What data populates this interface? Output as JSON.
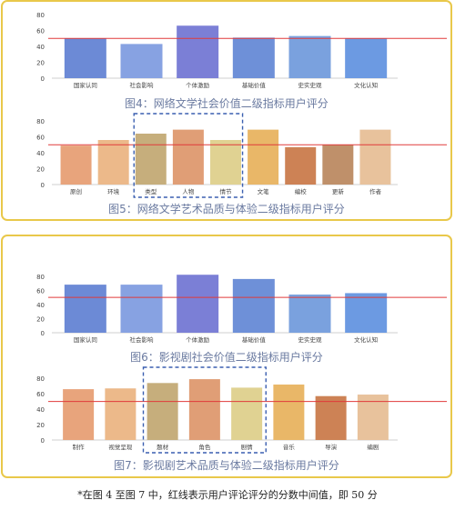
{
  "chart_data": [
    {
      "type": "bar",
      "caption": "图4：网络文学社会价值二级指标用户评分",
      "categories": [
        "国家认同",
        "社会影响",
        "个体激励",
        "基础价值",
        "史实史观",
        "文化认知"
      ],
      "values": [
        50,
        43,
        66,
        51,
        53,
        50
      ],
      "colors": [
        "#6c8ad6",
        "#87a2e2",
        "#7b7fd6",
        "#6e90d8",
        "#7aa1de",
        "#6c9ae2"
      ],
      "yticks": [
        0,
        20,
        40,
        60,
        80
      ],
      "ylim": [
        0,
        80
      ],
      "reference_line": 50,
      "highlight": []
    },
    {
      "type": "bar",
      "caption": "图5：网络文学艺术品质与体验二级指标用户评分",
      "categories": [
        "原创",
        "环境",
        "类型",
        "人物",
        "情节",
        "文笔",
        "编校",
        "更新",
        "作者"
      ],
      "values": [
        49,
        56,
        64,
        69,
        56,
        69,
        47,
        50,
        69
      ],
      "colors": [
        "#e8a47c",
        "#ecb98a",
        "#c6ae7c",
        "#e09e76",
        "#e0d292",
        "#e9b768",
        "#cd8255",
        "#bf906a",
        "#e8c29c"
      ],
      "yticks": [
        0,
        20,
        40,
        60,
        80
      ],
      "ylim": [
        0,
        80
      ],
      "reference_line": 50,
      "highlight": [
        2,
        4
      ]
    },
    {
      "type": "bar",
      "caption": "图6：影视剧社会价值二级指标用户评分",
      "categories": [
        "国家认同",
        "社会影响",
        "个体激励",
        "基础价值",
        "史实史观",
        "文化认知"
      ],
      "values": [
        68,
        68,
        82,
        76,
        54,
        56
      ],
      "colors": [
        "#6c8ad6",
        "#87a2e2",
        "#7b7fd6",
        "#6e90d8",
        "#7aa1de",
        "#6c9ae2"
      ],
      "yticks": [
        0,
        20,
        40,
        60,
        80
      ],
      "ylim": [
        0,
        90
      ],
      "reference_line": 50,
      "highlight": []
    },
    {
      "type": "bar",
      "caption": "图7：影视剧艺术品质与体验二级指标用户评分",
      "categories": [
        "制作",
        "视觉呈现",
        "题材",
        "角色",
        "剧情",
        "音乐",
        "导演",
        "编剧"
      ],
      "values": [
        66,
        67,
        74,
        79,
        68,
        72,
        57,
        59
      ],
      "colors": [
        "#e8a47c",
        "#ecb98a",
        "#c6ae7c",
        "#e09e76",
        "#e0d292",
        "#e9b768",
        "#cd8255",
        "#e8c29c"
      ],
      "yticks": [
        0,
        20,
        40,
        60,
        80
      ],
      "ylim": [
        0,
        85
      ],
      "reference_line": 50,
      "highlight": [
        2,
        4
      ]
    }
  ],
  "footnote": "*在图 4 至图 7 中，红线表示用户评论评分的分数中间值，即 50 分",
  "style": {
    "reference_color": "#e03a3a",
    "highlight_color": "#3a5fb0",
    "axis_text_color": "#444444",
    "caption_color": "#6a7aa0",
    "panel_border_color": "#e9c84a"
  }
}
